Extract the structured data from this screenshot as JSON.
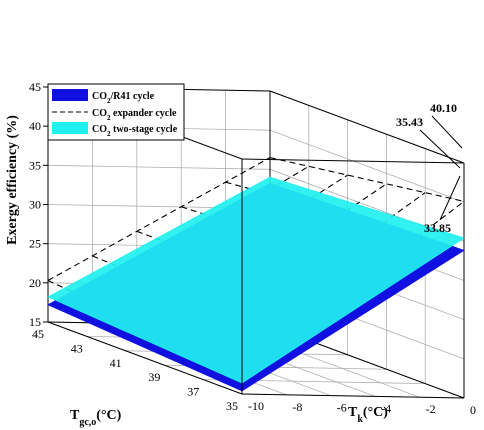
{
  "chart_data": {
    "type": "surface3d",
    "title": "",
    "zlabel": "Exergy efficiency (%)",
    "xlabel_main": "T",
    "xlabel_sub": "gc,o",
    "xlabel_unit": "(°C)",
    "ylabel_main": "T",
    "ylabel_sub": "k",
    "ylabel_unit": "(°C)",
    "zlim": [
      15,
      45
    ],
    "z_ticks": [
      "15",
      "20",
      "25",
      "30",
      "35",
      "40",
      "45"
    ],
    "x_ticks": [
      "45",
      "43",
      "41",
      "39",
      "37",
      "35"
    ],
    "y_ticks": [
      "-10",
      "-8",
      "-6",
      "-4",
      "-2",
      "0"
    ],
    "x_range": [
      35,
      45
    ],
    "y_range": [
      -10,
      0
    ],
    "grid": true,
    "legend_position": "top-left",
    "series": [
      {
        "name_prefix": "CO",
        "name_sub": "2",
        "name_suffix": "/R41 cycle",
        "color": "#1010e0",
        "style": "solid",
        "corners": {
          "x45_ym10": 17.2,
          "x35_ym10": 15.4,
          "x45_y0": 33.2,
          "x35_y0": 33.85
        }
      },
      {
        "name_prefix": "CO",
        "name_sub": "2",
        "name_suffix": " expander cycle",
        "color": "#000000",
        "style": "dashed",
        "corners": {
          "x45_ym10": 20.3,
          "x35_ym10": 18.0,
          "x45_y0": 36.5,
          "x35_y0": 40.1
        }
      },
      {
        "name_prefix": "CO",
        "name_sub": "2",
        "name_suffix": " two-stage cycle",
        "color": "#20f0f0",
        "style": "solid",
        "corners": {
          "x45_ym10": 18.2,
          "x35_ym10": 16.4,
          "x45_y0": 34.0,
          "x35_y0": 35.43
        }
      }
    ],
    "annotations": [
      {
        "text": "40.10",
        "value": 40.1
      },
      {
        "text": "35.43",
        "value": 35.43
      },
      {
        "text": "33.85",
        "value": 33.85
      }
    ]
  }
}
